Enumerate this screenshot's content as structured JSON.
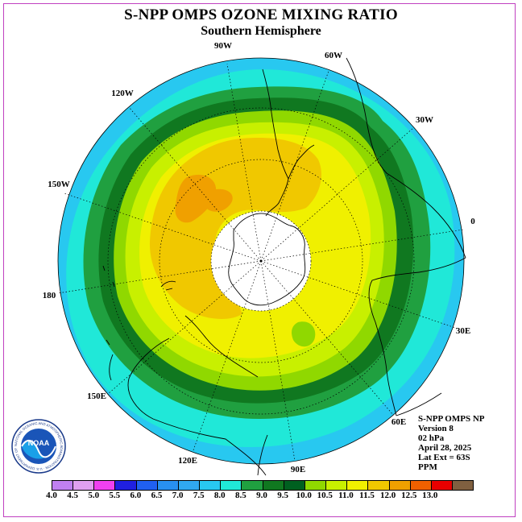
{
  "title": "S-NPP OMPS OZONE MIXING RATIO",
  "subtitle": "Southern Hemisphere",
  "map": {
    "projection": "south polar stereographic",
    "longitude_labels": [
      "90W",
      "60W",
      "30W",
      "0",
      "30E",
      "60E",
      "90E",
      "120E",
      "150E",
      "180",
      "150W",
      "120W"
    ],
    "missing_data_color": "#ffffff"
  },
  "info": {
    "line1": "S-NPP OMPS NP",
    "line2": "Version 8",
    "line3": "02 hPa",
    "line4": "April 28, 2025",
    "line5": "Lat Ext = 63S",
    "line6": "PPM"
  },
  "colorbar": {
    "labels": [
      "4.0",
      "4.5",
      "5.0",
      "5.5",
      "6.0",
      "6.5",
      "7.0",
      "7.5",
      "8.0",
      "8.5",
      "9.0",
      "9.5",
      "10.0",
      "10.5",
      "11.0",
      "11.5",
      "12.0",
      "12.5",
      "13.0"
    ],
    "colors": [
      "#c080f0",
      "#e0a0f0",
      "#f040f0",
      "#2020e0",
      "#2060f0",
      "#2890f0",
      "#30a8f0",
      "#28c8f0",
      "#20e8d8",
      "#20a040",
      "#107820",
      "#006020",
      "#90d800",
      "#c8f000",
      "#f0f000",
      "#f0c800",
      "#f0a000",
      "#f06000",
      "#e80000",
      "#806040"
    ]
  },
  "logo": {
    "text": "NOAA",
    "ring_text": "NATIONAL OCEANIC AND ATMOSPHERIC ADMINISTRATION · U.S. DEPARTMENT OF COMMERCE"
  }
}
